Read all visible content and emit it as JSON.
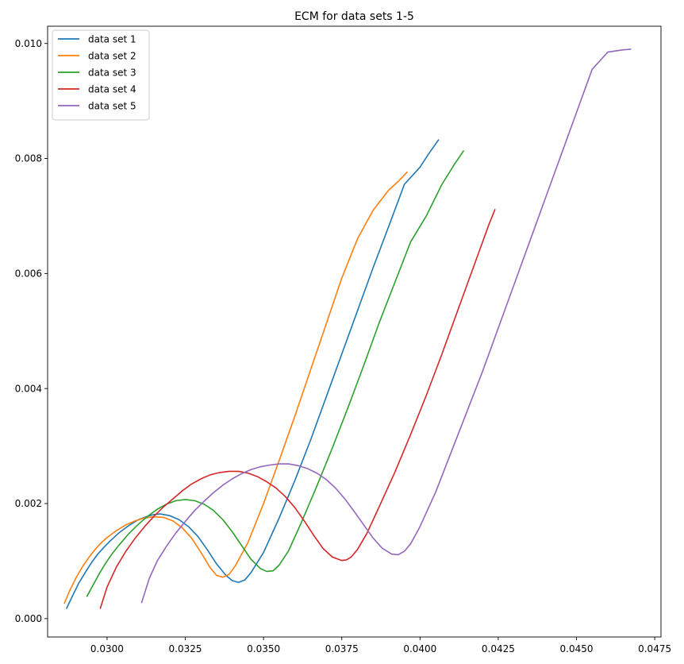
{
  "chart_data": {
    "type": "line",
    "title": "ECM for data sets 1-5",
    "xlabel": "",
    "ylabel": "",
    "xlim": [
      0.0281,
      0.0477
    ],
    "ylim": [
      -0.00032,
      0.0103
    ],
    "xticks": [
      0.03,
      0.0325,
      0.035,
      0.0375,
      0.04,
      0.0425,
      0.045,
      0.0475
    ],
    "xtick_labels": [
      "0.0300",
      "0.0325",
      "0.0350",
      "0.0375",
      "0.0400",
      "0.0425",
      "0.0450",
      "0.0475"
    ],
    "yticks": [
      0.0,
      0.002,
      0.004,
      0.006,
      0.008,
      0.01
    ],
    "ytick_labels": [
      "0.000",
      "0.002",
      "0.004",
      "0.006",
      "0.008",
      "0.010"
    ],
    "grid": false,
    "legend_position": "top-left",
    "series": [
      {
        "name": "data set 1",
        "color": "#1f77b4",
        "x": [
          0.0287,
          0.0289,
          0.0291,
          0.0293,
          0.0295,
          0.0297,
          0.0299,
          0.0301,
          0.0304,
          0.0307,
          0.031,
          0.0313,
          0.0315,
          0.0317,
          0.032,
          0.0323,
          0.0326,
          0.0329,
          0.0332,
          0.0335,
          0.0338,
          0.034,
          0.0342,
          0.0344,
          0.0346,
          0.035,
          0.0355,
          0.036,
          0.0365,
          0.037,
          0.0375,
          0.038,
          0.0385,
          0.039,
          0.0395,
          0.04,
          0.0403,
          0.0406
        ],
        "y": [
          0.00017,
          0.0004,
          0.00062,
          0.0008,
          0.00097,
          0.00112,
          0.00124,
          0.00135,
          0.0015,
          0.00162,
          0.00172,
          0.00178,
          0.00181,
          0.00182,
          0.00179,
          0.00172,
          0.0016,
          0.00143,
          0.0012,
          0.00095,
          0.00075,
          0.00066,
          0.00063,
          0.00067,
          0.0008,
          0.00115,
          0.00175,
          0.0024,
          0.0031,
          0.00385,
          0.0046,
          0.00535,
          0.0061,
          0.00682,
          0.00755,
          0.00785,
          0.0081,
          0.00833
        ]
      },
      {
        "name": "data set 2",
        "color": "#ff7f0e",
        "x": [
          0.02863,
          0.0288,
          0.029,
          0.0292,
          0.0294,
          0.0296,
          0.0298,
          0.03,
          0.0303,
          0.0306,
          0.0309,
          0.0312,
          0.0315,
          0.0318,
          0.0321,
          0.0324,
          0.0327,
          0.033,
          0.0333,
          0.0335,
          0.0337,
          0.0339,
          0.0341,
          0.0345,
          0.035,
          0.0355,
          0.036,
          0.0365,
          0.037,
          0.0375,
          0.038,
          0.0385,
          0.039,
          0.0393,
          0.0396
        ],
        "y": [
          0.00026,
          0.00048,
          0.0007,
          0.00089,
          0.00105,
          0.00119,
          0.00131,
          0.00141,
          0.00153,
          0.00163,
          0.0017,
          0.00175,
          0.00177,
          0.00176,
          0.0017,
          0.00158,
          0.0014,
          0.00115,
          0.00088,
          0.00075,
          0.00072,
          0.00077,
          0.00092,
          0.00132,
          0.002,
          0.00275,
          0.00352,
          0.00432,
          0.00512,
          0.00592,
          0.0066,
          0.0071,
          0.00745,
          0.0076,
          0.00777
        ]
      },
      {
        "name": "data set 3",
        "color": "#2ca02c",
        "x": [
          0.02935,
          0.02955,
          0.02975,
          0.02995,
          0.03015,
          0.0304,
          0.0307,
          0.031,
          0.0313,
          0.0316,
          0.0319,
          0.0322,
          0.0325,
          0.0328,
          0.0331,
          0.0334,
          0.0337,
          0.034,
          0.0343,
          0.0346,
          0.0349,
          0.0351,
          0.0353,
          0.0355,
          0.0358,
          0.0362,
          0.0367,
          0.0372,
          0.0377,
          0.0382,
          0.0387,
          0.0392,
          0.0397,
          0.0402,
          0.0407,
          0.0411,
          0.0414
        ],
        "y": [
          0.00038,
          0.00058,
          0.00078,
          0.00096,
          0.00112,
          0.00129,
          0.00148,
          0.00164,
          0.00178,
          0.0019,
          0.00199,
          0.00205,
          0.00207,
          0.00205,
          0.00199,
          0.00188,
          0.00172,
          0.00151,
          0.00127,
          0.00103,
          0.00087,
          0.00082,
          0.00083,
          0.00093,
          0.00118,
          0.00166,
          0.0023,
          0.00297,
          0.00367,
          0.0044,
          0.00515,
          0.00585,
          0.00655,
          0.007,
          0.00755,
          0.0079,
          0.00814
        ]
      },
      {
        "name": "data set 4",
        "color": "#d62728",
        "x": [
          0.02978,
          0.03,
          0.0303,
          0.0306,
          0.0309,
          0.0312,
          0.0315,
          0.0318,
          0.0321,
          0.0324,
          0.0327,
          0.033,
          0.0333,
          0.0336,
          0.0339,
          0.0342,
          0.0345,
          0.0348,
          0.0351,
          0.0354,
          0.0357,
          0.036,
          0.0363,
          0.0366,
          0.0369,
          0.0372,
          0.0375,
          0.03765,
          0.0378,
          0.038,
          0.0383,
          0.0387,
          0.0392,
          0.0397,
          0.0402,
          0.0407,
          0.0412,
          0.0417,
          0.0422,
          0.0424
        ],
        "y": [
          0.00017,
          0.00055,
          0.0009,
          0.00117,
          0.0014,
          0.0016,
          0.00178,
          0.00194,
          0.00208,
          0.00222,
          0.00234,
          0.00243,
          0.0025,
          0.00254,
          0.00256,
          0.00256,
          0.00253,
          0.00247,
          0.00238,
          0.00227,
          0.00212,
          0.00193,
          0.0017,
          0.00145,
          0.00122,
          0.00107,
          0.00101,
          0.00102,
          0.00107,
          0.0012,
          0.00148,
          0.00195,
          0.00255,
          0.0032,
          0.00388,
          0.0046,
          0.00535,
          0.0061,
          0.00685,
          0.00712
        ]
      },
      {
        "name": "data set 5",
        "color": "#9467bd",
        "x": [
          0.0311,
          0.03135,
          0.0316,
          0.0319,
          0.0322,
          0.0325,
          0.0328,
          0.0331,
          0.0334,
          0.0337,
          0.034,
          0.0343,
          0.0346,
          0.0349,
          0.0352,
          0.0355,
          0.0358,
          0.0361,
          0.0364,
          0.0367,
          0.037,
          0.0373,
          0.0376,
          0.0379,
          0.0382,
          0.0385,
          0.0388,
          0.0391,
          0.0393,
          0.0395,
          0.0397,
          0.04,
          0.0405,
          0.041,
          0.0415,
          0.042,
          0.0425,
          0.043,
          0.0435,
          0.044,
          0.0445,
          0.045,
          0.0455,
          0.046,
          0.0465,
          0.04675
        ],
        "y": [
          0.00027,
          0.0007,
          0.001,
          0.00126,
          0.00149,
          0.00169,
          0.00188,
          0.00204,
          0.00219,
          0.00232,
          0.00243,
          0.00252,
          0.00259,
          0.00264,
          0.00267,
          0.00269,
          0.00269,
          0.00266,
          0.00261,
          0.00253,
          0.00242,
          0.00227,
          0.00208,
          0.00186,
          0.00163,
          0.0014,
          0.00122,
          0.00112,
          0.00111,
          0.00117,
          0.0013,
          0.0016,
          0.0022,
          0.0029,
          0.0036,
          0.0043,
          0.00505,
          0.0058,
          0.00655,
          0.0073,
          0.00805,
          0.0088,
          0.00955,
          0.00985,
          0.00989,
          0.0099
        ]
      }
    ]
  }
}
